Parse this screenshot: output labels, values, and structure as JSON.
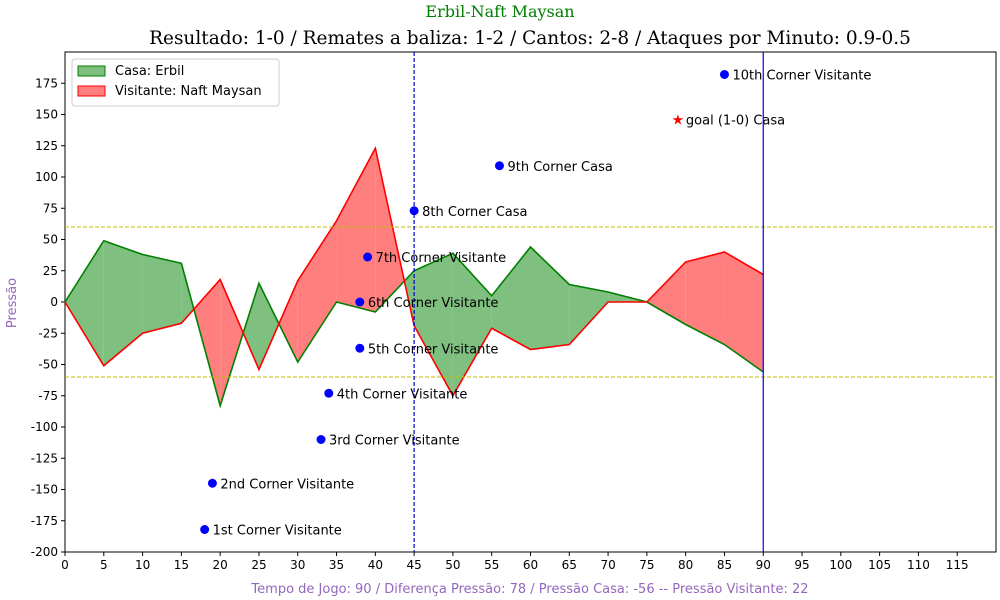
{
  "chart_data": {
    "type": "area",
    "suptitle": "Erbil-Naft Maysan",
    "title": "Resultado: 1-0 / Remates a baliza: 1-2 / Cantos: 2-8 / Ataques por Minuto: 0.9-0.5",
    "xlabel": "Tempo de Jogo: 90 / Diferença Pressão: 78 / Pressão Casa: -56 -- Pressão Visitante: 22",
    "ylabel": "Pressão",
    "xlim": [
      0,
      120
    ],
    "ylim": [
      -200,
      200
    ],
    "xticks": [
      0,
      5,
      10,
      15,
      20,
      25,
      30,
      35,
      40,
      45,
      50,
      55,
      60,
      65,
      70,
      75,
      80,
      85,
      90,
      95,
      100,
      105,
      110,
      115
    ],
    "yticks": [
      -200,
      -175,
      -150,
      -125,
      -100,
      -75,
      -50,
      -25,
      0,
      25,
      50,
      75,
      100,
      125,
      150,
      175
    ],
    "legend_position": "top-left",
    "colors": {
      "home_line": "#008000",
      "home_fill": "#7fbf7f",
      "away_line": "#ff0000",
      "away_fill": "#ff7f7f",
      "threshold": "#bfbf00",
      "halftime": "#0000cc",
      "fulltime": "#0000ff",
      "events": "#0000ff",
      "goal": "#ff0000",
      "title_green": "#008000",
      "label_purple": "#9467bd"
    },
    "x": [
      0,
      5,
      10,
      15,
      20,
      25,
      30,
      35,
      40,
      45,
      50,
      55,
      60,
      65,
      70,
      75,
      80,
      85,
      90
    ],
    "series": [
      {
        "name": "Casa: Erbil",
        "values": [
          0,
          49,
          38,
          31,
          -83,
          15,
          -48,
          0,
          -8,
          25,
          39,
          5,
          44,
          14,
          8,
          0,
          -18,
          -34,
          -56
        ]
      },
      {
        "name": "Visitante: Naft Maysan",
        "values": [
          0,
          -51,
          -25,
          -17,
          18,
          -54,
          17,
          65,
          123,
          -19,
          -75,
          -21,
          -38,
          -34,
          0,
          0,
          32,
          40,
          22
        ]
      }
    ],
    "thresholds": [
      60,
      -60
    ],
    "vlines": [
      45,
      90
    ],
    "events": [
      {
        "x": 18,
        "y": -182,
        "label": "1st Corner Visitante",
        "marker": "dot"
      },
      {
        "x": 19,
        "y": -145,
        "label": "2nd Corner Visitante",
        "marker": "dot"
      },
      {
        "x": 33,
        "y": -110,
        "label": "3rd Corner Visitante",
        "marker": "dot"
      },
      {
        "x": 34,
        "y": -73,
        "label": "4th Corner Visitante",
        "marker": "dot"
      },
      {
        "x": 38,
        "y": -37,
        "label": "5th Corner Visitante",
        "marker": "dot"
      },
      {
        "x": 38,
        "y": 0,
        "label": "6th Corner Visitante",
        "marker": "dot"
      },
      {
        "x": 39,
        "y": 36,
        "label": "7th Corner Visitante",
        "marker": "dot"
      },
      {
        "x": 45,
        "y": 73,
        "label": "8th Corner Casa",
        "marker": "dot"
      },
      {
        "x": 56,
        "y": 109,
        "label": "9th Corner Casa",
        "marker": "dot"
      },
      {
        "x": 79,
        "y": 146,
        "label": "goal (1-0) Casa",
        "marker": "star"
      },
      {
        "x": 85,
        "y": 182,
        "label": "10th Corner Visitante",
        "marker": "dot"
      }
    ]
  }
}
